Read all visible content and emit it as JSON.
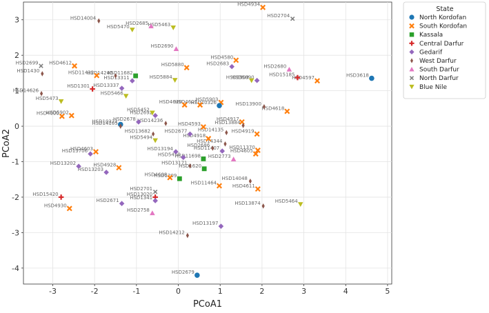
{
  "chart_data": {
    "type": "scatter",
    "xlabel": "PCoA1",
    "ylabel": "PCoA2",
    "xlim": [
      -3.7,
      5.1
    ],
    "ylim": [
      -4.45,
      3.5
    ],
    "xticks": [
      -3,
      -2,
      -1,
      0,
      1,
      2,
      3,
      4,
      5
    ],
    "yticks": [
      -4,
      -3,
      -2,
      -1,
      0,
      1,
      2,
      3
    ],
    "legend": {
      "title": "State",
      "position": "right",
      "entries": [
        {
          "name": "North Kordofan",
          "color": "#1f77b4",
          "marker": "circle"
        },
        {
          "name": "South Kordofan",
          "color": "#ff7f0e",
          "marker": "x"
        },
        {
          "name": "Kassala",
          "color": "#2ca02c",
          "marker": "square"
        },
        {
          "name": "Central Darfur",
          "color": "#d62728",
          "marker": "plus"
        },
        {
          "name": "Gedarif",
          "color": "#9467bd",
          "marker": "diamond"
        },
        {
          "name": "West Darfur",
          "color": "#8c564b",
          "marker": "thin-diamond"
        },
        {
          "name": "South Darfur",
          "color": "#e377c2",
          "marker": "triangle-up"
        },
        {
          "name": "North Darfur",
          "color": "#7f7f7f",
          "marker": "small-x"
        },
        {
          "name": "Blue Nile",
          "color": "#bcbd22",
          "marker": "triangle-down"
        }
      ]
    },
    "points": [
      {
        "label": "HSD4934",
        "x": 2.02,
        "y": 3.35,
        "series": 1
      },
      {
        "label": "HSD2704",
        "x": 2.73,
        "y": 3.03,
        "series": 7
      },
      {
        "label": "HSD14004",
        "x": -1.9,
        "y": 2.97,
        "series": 5
      },
      {
        "label": "HSD2685",
        "x": -0.65,
        "y": 2.82,
        "series": 6
      },
      {
        "label": "HSD5463",
        "x": -0.12,
        "y": 2.78,
        "series": 8
      },
      {
        "label": "HSD5470",
        "x": -1.1,
        "y": 2.72,
        "series": 8
      },
      {
        "label": "HSD2690",
        "x": -0.05,
        "y": 2.18,
        "series": 6
      },
      {
        "label": "HSD4580",
        "x": 1.38,
        "y": 1.86,
        "series": 1
      },
      {
        "label": "HSD2683",
        "x": 1.28,
        "y": 1.68,
        "series": 4
      },
      {
        "label": "HSD2699",
        "x": -3.28,
        "y": 1.7,
        "series": 7
      },
      {
        "label": "HSD4612",
        "x": -2.48,
        "y": 1.7,
        "series": 1
      },
      {
        "label": "HSD5880",
        "x": 0.2,
        "y": 1.65,
        "series": 1
      },
      {
        "label": "HSD2680",
        "x": 2.65,
        "y": 1.6,
        "series": 6
      },
      {
        "label": "HSD1430",
        "x": -3.25,
        "y": 1.48,
        "series": 5
      },
      {
        "label": "HSD11432",
        "x": -1.95,
        "y": 1.43,
        "series": 1
      },
      {
        "label": "HSD14240",
        "x": -1.5,
        "y": 1.42,
        "series": 5
      },
      {
        "label": "HSD11682",
        "x": -1.02,
        "y": 1.42,
        "series": 2
      },
      {
        "label": "HSD15185",
        "x": 2.85,
        "y": 1.37,
        "series": 3
      },
      {
        "label": "HSD5884",
        "x": -0.08,
        "y": 1.3,
        "series": 8
      },
      {
        "label": "HSD13311",
        "x": -1.1,
        "y": 1.28,
        "series": 4
      },
      {
        "label": "HSD4597",
        "x": 3.32,
        "y": 1.28,
        "series": 1
      },
      {
        "label": "HSD3618",
        "x": 4.62,
        "y": 1.35,
        "series": 0
      },
      {
        "label": "HSD5903",
        "x": 1.75,
        "y": 1.29,
        "series": 8
      },
      {
        "label": "HSD5890",
        "x": 1.88,
        "y": 1.29,
        "series": 4
      },
      {
        "label": "HSD1301",
        "x": -2.05,
        "y": 1.05,
        "series": 3
      },
      {
        "label": "HSD13337",
        "x": -1.35,
        "y": 1.07,
        "series": 4
      },
      {
        "label": "HSD14626",
        "x": -3.27,
        "y": 0.92,
        "series": 5
      },
      {
        "label": "HSD5466",
        "x": -1.25,
        "y": 0.85,
        "series": 8
      },
      {
        "label": "HSD5473",
        "x": -2.8,
        "y": 0.7,
        "series": 8
      },
      {
        "label": "HSD5903",
        "x": 1.02,
        "y": 0.67,
        "series": 1
      },
      {
        "label": "HSD4620",
        "x": 0.15,
        "y": 0.6,
        "series": 1
      },
      {
        "label": "HSD4607",
        "x": 0.52,
        "y": 0.6,
        "series": 1
      },
      {
        "label": "HSD10326",
        "x": 0.98,
        "y": 0.58,
        "series": 0
      },
      {
        "label": "HSD13900",
        "x": 2.05,
        "y": 0.55,
        "series": 5
      },
      {
        "label": "HSD4618",
        "x": 2.6,
        "y": 0.42,
        "series": 1
      },
      {
        "label": "HSD4000",
        "x": -2.78,
        "y": 0.28,
        "series": 1
      },
      {
        "label": "HSD5902",
        "x": -2.55,
        "y": 0.3,
        "series": 1
      },
      {
        "label": "HSD5452",
        "x": -0.62,
        "y": 0.38,
        "series": 8
      },
      {
        "label": "HSD2692",
        "x": -0.55,
        "y": 0.3,
        "series": 4
      },
      {
        "label": "HSD2678",
        "x": -0.95,
        "y": 0.12,
        "series": 4
      },
      {
        "label": "HSD14236",
        "x": -0.3,
        "y": 0.08,
        "series": 5
      },
      {
        "label": "HSD10321",
        "x": -1.38,
        "y": 0.05,
        "series": 0
      },
      {
        "label": "HSD14105",
        "x": -1.38,
        "y": 0.0,
        "series": 5
      },
      {
        "label": "HSD4917",
        "x": 1.52,
        "y": 0.12,
        "series": 1
      },
      {
        "label": "HSD13884",
        "x": 1.55,
        "y": 0.02,
        "series": 5
      },
      {
        "label": "HSD4593",
        "x": 0.6,
        "y": -0.02,
        "series": 1
      },
      {
        "label": "HSD14135",
        "x": 1.15,
        "y": -0.18,
        "series": 5
      },
      {
        "label": "HSD13682",
        "x": -0.6,
        "y": -0.22,
        "series": 5
      },
      {
        "label": "HSD2677",
        "x": 0.28,
        "y": -0.22,
        "series": 4
      },
      {
        "label": "HSD4918",
        "x": 0.72,
        "y": -0.35,
        "series": 1
      },
      {
        "label": "HSD4919",
        "x": 1.88,
        "y": -0.22,
        "series": 1
      },
      {
        "label": "HSD5494",
        "x": -0.55,
        "y": -0.4,
        "series": 8
      },
      {
        "label": "HSD14344",
        "x": 1.12,
        "y": -0.5,
        "series": 5
      },
      {
        "label": "HSD2686",
        "x": 0.82,
        "y": -0.62,
        "series": 5
      },
      {
        "label": "HSD11407",
        "x": 1.05,
        "y": -0.7,
        "series": 4
      },
      {
        "label": "HSD11370",
        "x": 1.9,
        "y": -0.68,
        "series": 1
      },
      {
        "label": "HSD4605",
        "x": 1.85,
        "y": -0.78,
        "series": 1
      },
      {
        "label": "HSD4603",
        "x": -1.97,
        "y": -0.72,
        "series": 1
      },
      {
        "label": "HSD13706",
        "x": -2.1,
        "y": -0.78,
        "series": 4
      },
      {
        "label": "HSD13194",
        "x": -0.06,
        "y": -0.72,
        "series": 4
      },
      {
        "label": "HSD5450",
        "x": 0.12,
        "y": -0.88,
        "series": 4
      },
      {
        "label": "HSD11698",
        "x": 0.6,
        "y": -0.92,
        "series": 2
      },
      {
        "label": "HSD2773",
        "x": 1.32,
        "y": -0.93,
        "series": 6
      },
      {
        "label": "HSD13202",
        "x": -2.38,
        "y": -1.13,
        "series": 4
      },
      {
        "label": "HSD4928",
        "x": -1.42,
        "y": -1.17,
        "series": 1
      },
      {
        "label": "HSD13203",
        "x": -1.72,
        "y": -1.3,
        "series": 4
      },
      {
        "label": "HSD13171",
        "x": 0.28,
        "y": -1.12,
        "series": 5
      },
      {
        "label": "HSD1620",
        "x": 0.62,
        "y": -1.2,
        "series": 2
      },
      {
        "label": "HSD4608",
        "x": -0.2,
        "y": -1.45,
        "series": 1
      },
      {
        "label": "HSD1209",
        "x": 0.03,
        "y": -1.48,
        "series": 2
      },
      {
        "label": "HSD11464",
        "x": 0.98,
        "y": -1.68,
        "series": 1
      },
      {
        "label": "HSD14048",
        "x": 1.72,
        "y": -1.55,
        "series": 5
      },
      {
        "label": "HSD4611",
        "x": 1.9,
        "y": -1.77,
        "series": 1
      },
      {
        "label": "HSD2701",
        "x": -0.55,
        "y": -1.85,
        "series": 7
      },
      {
        "label": "HSD13020",
        "x": -0.55,
        "y": -2.0,
        "series": 3
      },
      {
        "label": "HSD15420",
        "x": -2.8,
        "y": -2.0,
        "series": 3
      },
      {
        "label": "HSD2671",
        "x": -1.35,
        "y": -2.18,
        "series": 4
      },
      {
        "label": "HSD1341",
        "x": -0.55,
        "y": -2.1,
        "series": 4
      },
      {
        "label": "HSD13874",
        "x": 2.03,
        "y": -2.25,
        "series": 5
      },
      {
        "label": "HSD5464",
        "x": 2.92,
        "y": -2.2,
        "series": 8
      },
      {
        "label": "HSD4930",
        "x": -2.6,
        "y": -2.32,
        "series": 1
      },
      {
        "label": "HSD2758",
        "x": -0.62,
        "y": -2.45,
        "series": 6
      },
      {
        "label": "HSD13197",
        "x": 1.02,
        "y": -2.82,
        "series": 4
      },
      {
        "label": "HSD14212",
        "x": 0.22,
        "y": -3.08,
        "series": 5
      },
      {
        "label": "HSD2679",
        "x": 0.45,
        "y": -4.2,
        "series": 0
      }
    ]
  }
}
